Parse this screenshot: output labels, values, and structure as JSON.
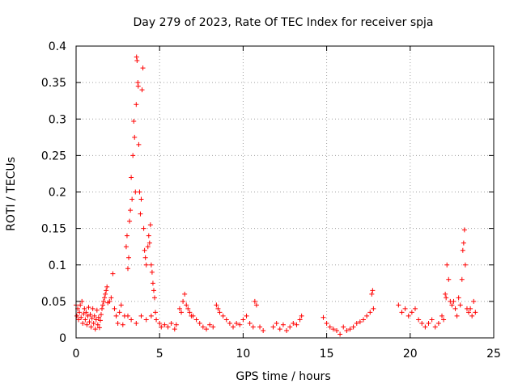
{
  "chart_data": {
    "type": "scatter",
    "title": "Day 279 of 2023, Rate Of TEC Index for receiver spja",
    "xlabel": "GPS time / hours",
    "ylabel": "ROTI / TECUs",
    "xlim": [
      0,
      25
    ],
    "ylim": [
      0,
      0.4
    ],
    "x_ticks": [
      0,
      5,
      10,
      15,
      20,
      25
    ],
    "x_tick_labels": [
      "0",
      "5",
      "10",
      "15",
      "20",
      "25"
    ],
    "y_ticks": [
      0,
      0.05,
      0.1,
      0.15,
      0.2,
      0.25,
      0.3,
      0.35,
      0.4
    ],
    "y_tick_labels": [
      "0",
      "0.05",
      "0.1",
      "0.15",
      "0.2",
      "0.25",
      "0.3",
      "0.35",
      "0.4"
    ],
    "grid": true,
    "marker": "plus",
    "series": [
      {
        "color": "#ff0000",
        "points": [
          [
            0.0,
            0.045
          ],
          [
            0.05,
            0.03
          ],
          [
            0.1,
            0.04
          ],
          [
            0.15,
            0.025
          ],
          [
            0.2,
            0.035
          ],
          [
            0.25,
            0.045
          ],
          [
            0.3,
            0.028
          ],
          [
            0.35,
            0.05
          ],
          [
            0.4,
            0.02
          ],
          [
            0.45,
            0.033
          ],
          [
            0.5,
            0.04
          ],
          [
            0.55,
            0.025
          ],
          [
            0.6,
            0.035
          ],
          [
            0.65,
            0.018
          ],
          [
            0.7,
            0.03
          ],
          [
            0.75,
            0.042
          ],
          [
            0.8,
            0.022
          ],
          [
            0.85,
            0.032
          ],
          [
            0.9,
            0.015
          ],
          [
            0.95,
            0.027
          ],
          [
            1.0,
            0.04
          ],
          [
            1.05,
            0.02
          ],
          [
            1.1,
            0.03
          ],
          [
            1.15,
            0.012
          ],
          [
            1.2,
            0.025
          ],
          [
            1.25,
            0.038
          ],
          [
            1.3,
            0.018
          ],
          [
            1.35,
            0.028
          ],
          [
            1.4,
            0.014
          ],
          [
            1.45,
            0.024
          ],
          [
            1.5,
            0.032
          ],
          [
            1.55,
            0.04
          ],
          [
            1.6,
            0.045
          ],
          [
            1.65,
            0.05
          ],
          [
            1.7,
            0.055
          ],
          [
            1.75,
            0.06
          ],
          [
            1.8,
            0.065
          ],
          [
            1.85,
            0.07
          ],
          [
            1.9,
            0.048
          ],
          [
            2.0,
            0.05
          ],
          [
            2.1,
            0.055
          ],
          [
            2.2,
            0.088
          ],
          [
            2.3,
            0.04
          ],
          [
            2.4,
            0.03
          ],
          [
            2.5,
            0.02
          ],
          [
            2.6,
            0.035
          ],
          [
            2.7,
            0.045
          ],
          [
            2.8,
            0.018
          ],
          [
            2.9,
            0.03
          ],
          [
            3.0,
            0.125
          ],
          [
            3.05,
            0.14
          ],
          [
            3.1,
            0.095
          ],
          [
            3.15,
            0.11
          ],
          [
            3.2,
            0.16
          ],
          [
            3.25,
            0.175
          ],
          [
            3.3,
            0.22
          ],
          [
            3.35,
            0.19
          ],
          [
            3.4,
            0.25
          ],
          [
            3.45,
            0.297
          ],
          [
            3.5,
            0.275
          ],
          [
            3.55,
            0.2
          ],
          [
            3.6,
            0.32
          ],
          [
            3.62,
            0.385
          ],
          [
            3.65,
            0.38
          ],
          [
            3.7,
            0.35
          ],
          [
            3.72,
            0.345
          ],
          [
            3.75,
            0.265
          ],
          [
            3.8,
            0.2
          ],
          [
            3.85,
            0.17
          ],
          [
            3.9,
            0.19
          ],
          [
            3.95,
            0.34
          ],
          [
            4.0,
            0.37
          ],
          [
            4.05,
            0.15
          ],
          [
            4.1,
            0.12
          ],
          [
            4.15,
            0.11
          ],
          [
            4.2,
            0.1
          ],
          [
            4.3,
            0.125
          ],
          [
            4.35,
            0.14
          ],
          [
            4.4,
            0.13
          ],
          [
            4.45,
            0.155
          ],
          [
            4.5,
            0.1
          ],
          [
            4.55,
            0.09
          ],
          [
            4.6,
            0.075
          ],
          [
            4.65,
            0.065
          ],
          [
            4.7,
            0.055
          ],
          [
            4.75,
            0.035
          ],
          [
            3.1,
            0.03
          ],
          [
            3.3,
            0.025
          ],
          [
            3.6,
            0.02
          ],
          [
            3.9,
            0.03
          ],
          [
            4.2,
            0.025
          ],
          [
            4.5,
            0.03
          ],
          [
            4.8,
            0.025
          ],
          [
            5.0,
            0.02
          ],
          [
            5.1,
            0.015
          ],
          [
            5.3,
            0.018
          ],
          [
            5.5,
            0.015
          ],
          [
            5.7,
            0.02
          ],
          [
            5.9,
            0.012
          ],
          [
            6.0,
            0.018
          ],
          [
            6.2,
            0.04
          ],
          [
            6.3,
            0.035
          ],
          [
            6.4,
            0.05
          ],
          [
            6.5,
            0.06
          ],
          [
            6.6,
            0.045
          ],
          [
            6.7,
            0.04
          ],
          [
            6.8,
            0.035
          ],
          [
            6.9,
            0.03
          ],
          [
            7.0,
            0.03
          ],
          [
            7.2,
            0.025
          ],
          [
            7.4,
            0.02
          ],
          [
            7.6,
            0.015
          ],
          [
            7.8,
            0.012
          ],
          [
            8.0,
            0.018
          ],
          [
            8.2,
            0.015
          ],
          [
            8.4,
            0.045
          ],
          [
            8.5,
            0.04
          ],
          [
            8.6,
            0.035
          ],
          [
            8.8,
            0.03
          ],
          [
            9.0,
            0.025
          ],
          [
            9.2,
            0.02
          ],
          [
            9.4,
            0.015
          ],
          [
            9.6,
            0.02
          ],
          [
            9.8,
            0.018
          ],
          [
            10.0,
            0.025
          ],
          [
            10.2,
            0.03
          ],
          [
            10.4,
            0.02
          ],
          [
            10.6,
            0.015
          ],
          [
            10.7,
            0.05
          ],
          [
            10.8,
            0.045
          ],
          [
            11.0,
            0.015
          ],
          [
            11.2,
            0.01
          ],
          [
            11.8,
            0.015
          ],
          [
            12.0,
            0.02
          ],
          [
            12.2,
            0.012
          ],
          [
            12.4,
            0.018
          ],
          [
            12.6,
            0.01
          ],
          [
            12.8,
            0.015
          ],
          [
            13.0,
            0.02
          ],
          [
            13.2,
            0.018
          ],
          [
            13.4,
            0.025
          ],
          [
            13.5,
            0.03
          ],
          [
            14.8,
            0.028
          ],
          [
            15.0,
            0.02
          ],
          [
            15.2,
            0.015
          ],
          [
            15.4,
            0.012
          ],
          [
            15.6,
            0.01
          ],
          [
            15.8,
            0.005
          ],
          [
            16.0,
            0.015
          ],
          [
            16.2,
            0.01
          ],
          [
            16.4,
            0.012
          ],
          [
            16.6,
            0.015
          ],
          [
            16.8,
            0.02
          ],
          [
            17.0,
            0.022
          ],
          [
            17.2,
            0.025
          ],
          [
            17.4,
            0.03
          ],
          [
            17.6,
            0.035
          ],
          [
            17.7,
            0.06
          ],
          [
            17.75,
            0.065
          ],
          [
            17.8,
            0.04
          ],
          [
            19.3,
            0.045
          ],
          [
            19.5,
            0.035
          ],
          [
            19.7,
            0.04
          ],
          [
            19.9,
            0.03
          ],
          [
            20.1,
            0.035
          ],
          [
            20.3,
            0.04
          ],
          [
            20.5,
            0.025
          ],
          [
            20.7,
            0.02
          ],
          [
            20.9,
            0.015
          ],
          [
            21.1,
            0.02
          ],
          [
            21.3,
            0.025
          ],
          [
            21.5,
            0.015
          ],
          [
            21.7,
            0.02
          ],
          [
            21.9,
            0.03
          ],
          [
            22.0,
            0.025
          ],
          [
            22.1,
            0.06
          ],
          [
            22.15,
            0.055
          ],
          [
            22.2,
            0.1
          ],
          [
            22.3,
            0.08
          ],
          [
            22.4,
            0.05
          ],
          [
            22.5,
            0.045
          ],
          [
            22.6,
            0.05
          ],
          [
            22.7,
            0.04
          ],
          [
            22.8,
            0.03
          ],
          [
            22.9,
            0.055
          ],
          [
            23.0,
            0.045
          ],
          [
            23.1,
            0.08
          ],
          [
            23.15,
            0.12
          ],
          [
            23.2,
            0.13
          ],
          [
            23.25,
            0.148
          ],
          [
            23.3,
            0.1
          ],
          [
            23.4,
            0.04
          ],
          [
            23.5,
            0.035
          ],
          [
            23.6,
            0.04
          ],
          [
            23.7,
            0.03
          ],
          [
            23.8,
            0.05
          ],
          [
            23.9,
            0.035
          ]
        ]
      }
    ]
  }
}
